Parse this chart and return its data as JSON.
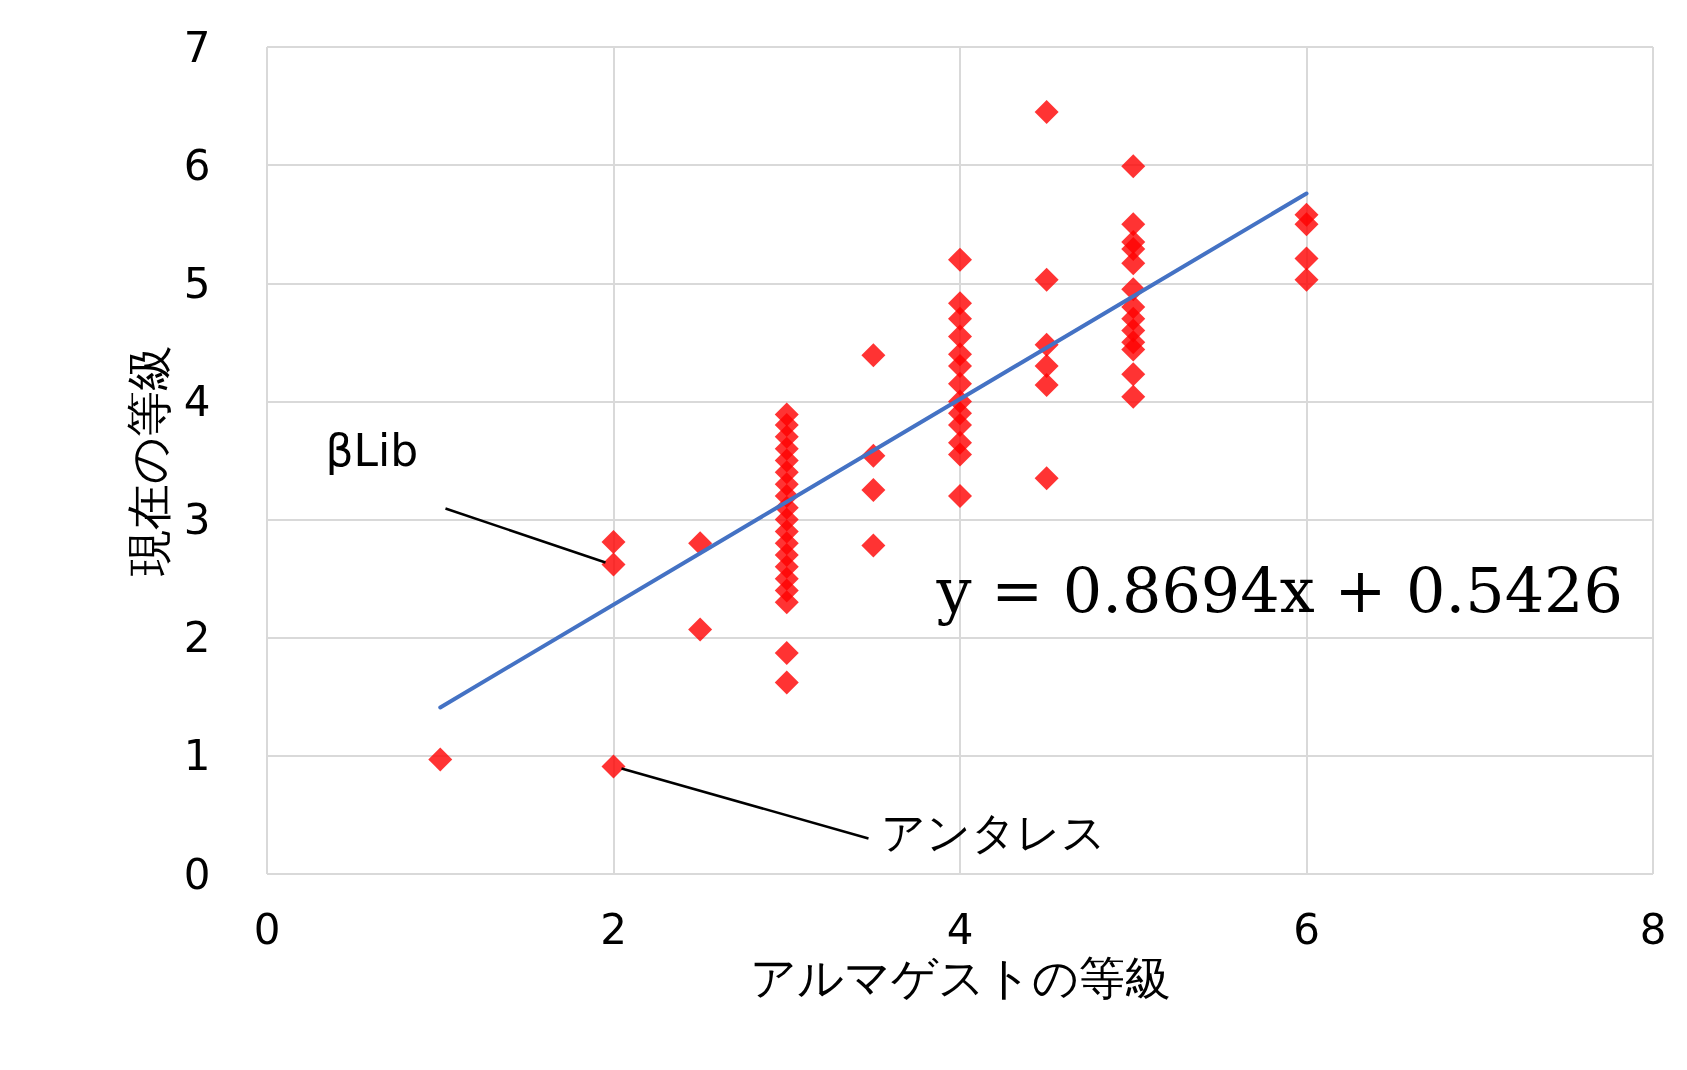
{
  "chart_data": {
    "type": "scatter",
    "xlabel": "アルマゲストの等級",
    "ylabel": "現在の等級",
    "xlim": [
      0,
      8
    ],
    "xticks": [
      0,
      2,
      4,
      6,
      8
    ],
    "ylim": [
      0,
      7
    ],
    "yticks": [
      0,
      1,
      2,
      3,
      4,
      5,
      6,
      7
    ],
    "grid": true,
    "marker": "diamond",
    "series": [
      {
        "type": "scatter",
        "color": "#ff0000",
        "x": [
          1,
          2,
          2,
          2,
          2.5,
          2.5,
          3,
          3,
          3,
          3,
          3,
          3,
          3,
          3,
          3,
          3,
          3,
          3,
          3,
          3,
          3,
          3,
          3,
          3,
          3,
          3.5,
          3.5,
          3.5,
          3.5,
          4,
          4,
          4,
          4,
          4,
          4,
          4,
          4,
          4,
          4,
          4,
          4,
          4,
          4.5,
          4.5,
          4.5,
          4.5,
          4.5,
          4.5,
          5,
          5,
          5,
          5,
          5,
          5,
          5,
          5,
          5,
          5,
          5,
          5,
          5,
          6,
          6,
          6,
          6
        ],
        "values": [
          0.97,
          2.81,
          2.62,
          0.91,
          2.8,
          2.07,
          3.89,
          3.8,
          3.7,
          3.6,
          3.5,
          3.4,
          3.3,
          3.2,
          3.1,
          3.0,
          2.9,
          2.8,
          2.7,
          2.6,
          2.5,
          2.4,
          2.3,
          1.87,
          1.62,
          4.39,
          3.54,
          3.25,
          2.78,
          5.2,
          4.83,
          4.7,
          4.55,
          4.4,
          4.3,
          4.15,
          4.0,
          3.9,
          3.8,
          3.65,
          3.55,
          3.2,
          6.45,
          5.03,
          4.48,
          4.3,
          4.14,
          3.35,
          5.99,
          5.5,
          5.35,
          5.29,
          5.17,
          4.95,
          4.8,
          4.7,
          4.6,
          4.5,
          4.44,
          4.23,
          4.04,
          5.58,
          5.5,
          5.21,
          5.03
        ]
      },
      {
        "type": "line",
        "color": "#4472c4",
        "x": [
          1,
          6
        ],
        "values": [
          1.41,
          5.76
        ],
        "marker": "none"
      }
    ],
    "annotations": [
      {
        "text": "βLib",
        "x": 2,
        "y": 2.62
      },
      {
        "text": "アンタレス",
        "x": 2,
        "y": 0.91
      },
      "y = 0.8694x + 0.5426"
    ]
  }
}
